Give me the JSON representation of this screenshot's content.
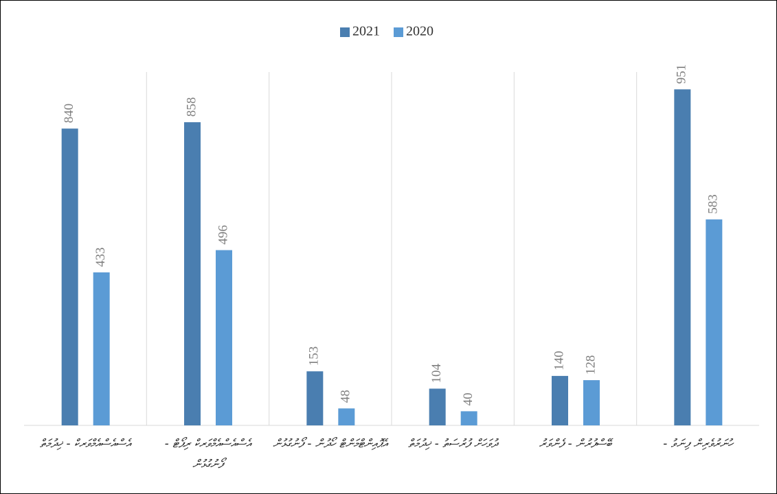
{
  "chart_data": {
    "type": "bar",
    "categories": [
      "އެސްއެސްއެމްވަރކް - ޚިދުމަތް",
      "އެސްއެސްއެމްވަރކް ރިޕޯޓް - ފޯނުގުޅުން",
      "އެޕޮއިންޓްމަންޓް ހޯދުން - ފޯނުގުޅުން",
      "ދުވަހަށް ފުރުސަތު - ޚިދުމަތް",
      "ބޭސްފުރުން - ފެންވަރު",
      "ހުނަރުވެރިން ފިނަވު -"
    ],
    "series": [
      {
        "name": "2021",
        "color": "#4a7eb0",
        "values": [
          840,
          858,
          153,
          104,
          140,
          951
        ]
      },
      {
        "name": "2020",
        "color": "#5b9bd5",
        "values": [
          433,
          496,
          48,
          40,
          128,
          583
        ]
      }
    ],
    "ylim": [
      0,
      1000
    ]
  }
}
